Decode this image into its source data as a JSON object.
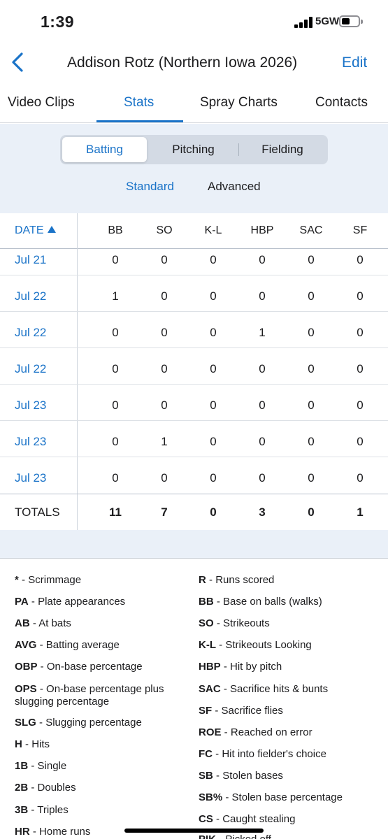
{
  "status_bar": {
    "time": "1:39",
    "network": "5GW"
  },
  "header": {
    "title": "Addison Rotz (Northern Iowa 2026)",
    "edit_label": "Edit"
  },
  "tabs": [
    {
      "label": "Video Clips",
      "active": false
    },
    {
      "label": "Stats",
      "active": true
    },
    {
      "label": "Spray Charts",
      "active": false
    },
    {
      "label": "Contacts",
      "active": false
    }
  ],
  "segments": [
    {
      "label": "Batting",
      "active": true
    },
    {
      "label": "Pitching",
      "active": false
    },
    {
      "label": "Fielding",
      "active": false
    }
  ],
  "subtabs": [
    {
      "label": "Standard",
      "active": true
    },
    {
      "label": "Advanced",
      "active": false
    }
  ],
  "table": {
    "date_header": "DATE",
    "columns": [
      "BB",
      "SO",
      "K-L",
      "HBP",
      "SAC",
      "SF"
    ],
    "rows": [
      {
        "date": "Jul 21",
        "values": [
          "0",
          "0",
          "0",
          "0",
          "0",
          "0"
        ]
      },
      {
        "date": "Jul 22",
        "values": [
          "1",
          "0",
          "0",
          "0",
          "0",
          "0"
        ]
      },
      {
        "date": "Jul 22",
        "values": [
          "0",
          "0",
          "0",
          "1",
          "0",
          "0"
        ]
      },
      {
        "date": "Jul 22",
        "values": [
          "0",
          "0",
          "0",
          "0",
          "0",
          "0"
        ]
      },
      {
        "date": "Jul 23",
        "values": [
          "0",
          "0",
          "0",
          "0",
          "0",
          "0"
        ]
      },
      {
        "date": "Jul 23",
        "values": [
          "0",
          "1",
          "0",
          "0",
          "0",
          "0"
        ]
      },
      {
        "date": "Jul 23",
        "values": [
          "0",
          "0",
          "0",
          "0",
          "0",
          "0"
        ]
      }
    ],
    "totals_label": "TOTALS",
    "totals": [
      "11",
      "7",
      "0",
      "3",
      "0",
      "1"
    ]
  },
  "legend": {
    "left": [
      {
        "abbr": "*",
        "desc": "Scrimmage"
      },
      {
        "abbr": "PA",
        "desc": "Plate appearances"
      },
      {
        "abbr": "AB",
        "desc": "At bats"
      },
      {
        "abbr": "AVG",
        "desc": "Batting average"
      },
      {
        "abbr": "OBP",
        "desc": "On-base percentage"
      },
      {
        "abbr": "OPS",
        "desc": "On-base percentage plus",
        "desc2": "slugging percentage"
      },
      {
        "abbr": "SLG",
        "desc": "Slugging percentage"
      },
      {
        "abbr": "H",
        "desc": "Hits"
      },
      {
        "abbr": "1B",
        "desc": "Single"
      },
      {
        "abbr": "2B",
        "desc": "Doubles"
      },
      {
        "abbr": "3B",
        "desc": "Triples"
      },
      {
        "abbr": "HR",
        "desc": "Home runs"
      }
    ],
    "right": [
      {
        "abbr": "R",
        "desc": "Runs scored"
      },
      {
        "abbr": "BB",
        "desc": "Base on balls (walks)"
      },
      {
        "abbr": "SO",
        "desc": "Strikeouts"
      },
      {
        "abbr": "K-L",
        "desc": "Strikeouts Looking"
      },
      {
        "abbr": "HBP",
        "desc": "Hit by pitch"
      },
      {
        "abbr": "SAC",
        "desc": "Sacrifice hits & bunts"
      },
      {
        "abbr": "SF",
        "desc": "Sacrifice flies"
      },
      {
        "abbr": "ROE",
        "desc": "Reached on error"
      },
      {
        "abbr": "FC",
        "desc": "Hit into fielder's choice"
      },
      {
        "abbr": "SB",
        "desc": "Stolen bases"
      },
      {
        "abbr": "SB%",
        "desc": "Stolen base percentage"
      },
      {
        "abbr": "CS",
        "desc": "Caught stealing"
      },
      {
        "abbr": "PIK",
        "desc": "Picked off"
      }
    ]
  },
  "colors": {
    "accent": "#1a73c8",
    "panel_bg": "#eaf0f8"
  }
}
